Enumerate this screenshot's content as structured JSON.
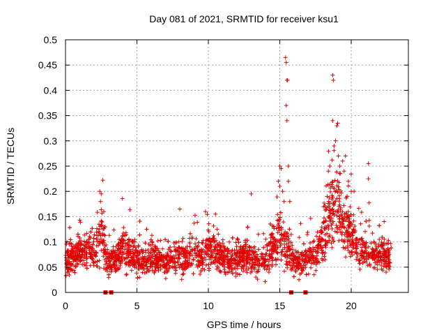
{
  "chart_data": {
    "type": "scatter",
    "title": "Day 081 of 2021, SRMTID for receiver ksu1",
    "xlabel": "GPS time / hours",
    "ylabel": "SRMTID / TECUs",
    "xlim": [
      0,
      24
    ],
    "ylim": [
      0,
      0.5
    ],
    "xticks": [
      0,
      5,
      10,
      15,
      20
    ],
    "xtick_labels": [
      "0",
      "5",
      "10",
      "15",
      "20"
    ],
    "yticks": [
      0,
      0.05,
      0.1,
      0.15,
      0.2,
      0.25,
      0.3,
      0.35,
      0.4,
      0.45,
      0.5
    ],
    "ytick_labels": [
      "0",
      "0.05",
      "0.1",
      "0.15",
      "0.2",
      "0.25",
      "0.3",
      "0.35",
      "0.4",
      "0.45",
      "0.5"
    ],
    "grid": true,
    "marker": "+",
    "color": "#e00000",
    "series_name": "SRMTID",
    "baseline_hours": [
      0.0,
      0.5,
      1.0,
      1.5,
      2.0,
      2.5,
      3.0,
      3.5,
      4.0,
      4.5,
      5.0,
      5.5,
      6.0,
      6.5,
      7.0,
      7.5,
      8.0,
      8.5,
      9.0,
      9.5,
      10.0,
      10.5,
      11.0,
      11.5,
      12.0,
      12.5,
      13.0,
      13.5,
      14.0,
      14.5,
      15.0,
      15.5,
      16.0,
      16.5,
      17.0,
      17.5,
      18.0,
      18.5,
      19.0,
      19.5,
      20.0,
      20.5,
      21.0,
      21.5,
      22.0,
      22.5,
      22.8
    ],
    "baseline_levels": [
      0.06,
      0.07,
      0.08,
      0.085,
      0.08,
      0.12,
      0.06,
      0.065,
      0.09,
      0.08,
      0.065,
      0.06,
      0.07,
      0.065,
      0.06,
      0.065,
      0.07,
      0.07,
      0.075,
      0.07,
      0.09,
      0.08,
      0.07,
      0.06,
      0.065,
      0.07,
      0.07,
      0.06,
      0.065,
      0.09,
      0.12,
      0.08,
      0.06,
      0.06,
      0.07,
      0.075,
      0.11,
      0.15,
      0.17,
      0.13,
      0.12,
      0.09,
      0.08,
      0.08,
      0.07,
      0.07,
      0.065
    ],
    "n_points": 2800,
    "highlight_points": [
      [
        13.0,
        0.195
      ],
      [
        15.4,
        0.465
      ],
      [
        15.45,
        0.455
      ],
      [
        15.5,
        0.42
      ],
      [
        15.55,
        0.42
      ],
      [
        15.45,
        0.37
      ],
      [
        15.5,
        0.34
      ],
      [
        15.0,
        0.25
      ],
      [
        15.1,
        0.245
      ],
      [
        15.6,
        0.25
      ],
      [
        15.6,
        0.22
      ],
      [
        15.7,
        0.18
      ],
      [
        14.9,
        0.22
      ],
      [
        15.0,
        0.21
      ],
      [
        15.2,
        0.2
      ],
      [
        15.3,
        0.18
      ],
      [
        18.7,
        0.43
      ],
      [
        18.75,
        0.42
      ],
      [
        18.7,
        0.34
      ],
      [
        19.0,
        0.33
      ],
      [
        19.05,
        0.335
      ],
      [
        18.9,
        0.3
      ],
      [
        18.8,
        0.29
      ],
      [
        19.1,
        0.27
      ],
      [
        18.5,
        0.25
      ],
      [
        18.4,
        0.24
      ],
      [
        19.2,
        0.25
      ],
      [
        19.4,
        0.26
      ],
      [
        19.6,
        0.27
      ],
      [
        19.5,
        0.24
      ],
      [
        19.8,
        0.22
      ],
      [
        20.0,
        0.2
      ],
      [
        20.2,
        0.2
      ],
      [
        21.2,
        0.255
      ],
      [
        21.2,
        0.225
      ],
      [
        2.4,
        0.2
      ],
      [
        2.5,
        0.195
      ],
      [
        2.45,
        0.18
      ],
      [
        8.0,
        0.165
      ],
      [
        9.8,
        0.16
      ],
      [
        10.5,
        0.155
      ]
    ],
    "zero_markers": [
      2.8,
      3.2,
      15.8,
      16.8
    ]
  }
}
